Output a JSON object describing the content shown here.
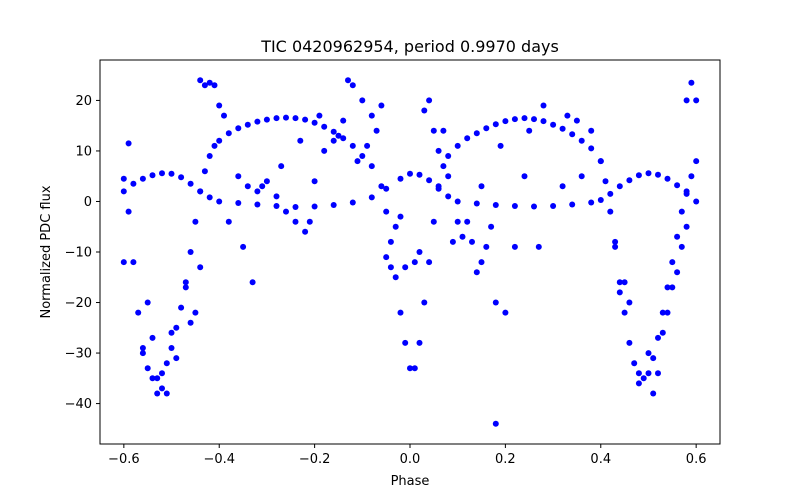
{
  "chart_data": {
    "type": "scatter",
    "title": "TIC 0420962954, period 0.9970 days",
    "xlabel": "Phase",
    "ylabel": "Normalized PDC flux",
    "xlim": [
      -0.65,
      0.65
    ],
    "ylim": [
      -48,
      28
    ],
    "xticks": [
      -0.6,
      -0.4,
      -0.2,
      0.0,
      0.2,
      0.4,
      0.6
    ],
    "xtick_labels": [
      "−0.6",
      "−0.4",
      "−0.2",
      "0.0",
      "0.2",
      "0.4",
      "0.6"
    ],
    "yticks": [
      20,
      10,
      0,
      -10,
      -20,
      -30,
      -40
    ],
    "ytick_labels": [
      "20",
      "10",
      "0",
      "−10",
      "−20",
      "−30",
      "−40"
    ],
    "grid": false,
    "legend": "none",
    "marker_color": "#0000ff",
    "series": [
      {
        "points": [
          [
            -0.6,
            4.5
          ],
          [
            -0.59,
            -2
          ],
          [
            -0.58,
            -12
          ],
          [
            -0.57,
            -22
          ],
          [
            -0.56,
            -29
          ],
          [
            -0.55,
            -33
          ],
          [
            -0.54,
            -35
          ],
          [
            -0.53,
            -35
          ],
          [
            -0.52,
            -34
          ],
          [
            -0.51,
            -32
          ],
          [
            -0.5,
            -29
          ],
          [
            -0.49,
            -25
          ],
          [
            -0.48,
            -21
          ],
          [
            -0.47,
            -16
          ],
          [
            -0.46,
            -10
          ],
          [
            -0.45,
            -4
          ],
          [
            -0.44,
            2
          ],
          [
            -0.43,
            6
          ],
          [
            -0.42,
            9
          ],
          [
            -0.41,
            11
          ],
          [
            -0.4,
            12
          ],
          [
            -0.38,
            13.5
          ],
          [
            -0.36,
            14.5
          ],
          [
            -0.34,
            15.2
          ],
          [
            -0.32,
            15.8
          ],
          [
            -0.3,
            16.2
          ],
          [
            -0.28,
            16.5
          ],
          [
            -0.26,
            16.6
          ],
          [
            -0.24,
            16.5
          ],
          [
            -0.22,
            16.2
          ],
          [
            -0.2,
            15.6
          ],
          [
            -0.18,
            14.8
          ],
          [
            -0.16,
            13.8
          ],
          [
            -0.14,
            12.5
          ],
          [
            -0.12,
            11
          ],
          [
            -0.1,
            9
          ],
          [
            -0.08,
            7
          ],
          [
            -0.06,
            3
          ],
          [
            -0.05,
            -2
          ],
          [
            -0.04,
            -8
          ],
          [
            -0.03,
            -15
          ],
          [
            -0.02,
            -22
          ],
          [
            -0.01,
            -28
          ],
          [
            0.0,
            -33
          ],
          [
            0.01,
            -33
          ],
          [
            0.02,
            -28
          ],
          [
            0.03,
            -20
          ],
          [
            0.04,
            -12
          ],
          [
            0.05,
            -4
          ],
          [
            0.06,
            3
          ],
          [
            0.07,
            7
          ],
          [
            0.08,
            9
          ],
          [
            0.1,
            11
          ],
          [
            0.12,
            12.5
          ],
          [
            0.14,
            13.5
          ],
          [
            0.16,
            14.5
          ],
          [
            0.18,
            15.3
          ],
          [
            0.2,
            15.9
          ],
          [
            0.22,
            16.3
          ],
          [
            0.24,
            16.5
          ],
          [
            0.26,
            16.3
          ],
          [
            0.28,
            15.9
          ],
          [
            0.3,
            15.2
          ],
          [
            0.32,
            14.4
          ],
          [
            0.34,
            13.3
          ],
          [
            0.36,
            12
          ],
          [
            0.38,
            10.5
          ],
          [
            0.4,
            8
          ],
          [
            0.41,
            4
          ],
          [
            0.42,
            -2
          ],
          [
            0.43,
            -9
          ],
          [
            0.44,
            -16
          ],
          [
            0.45,
            -22
          ],
          [
            0.46,
            -28
          ],
          [
            0.47,
            -32
          ],
          [
            0.48,
            -34
          ],
          [
            0.49,
            -35
          ],
          [
            0.5,
            -34
          ],
          [
            0.51,
            -31
          ],
          [
            0.52,
            -27
          ],
          [
            0.53,
            -22
          ],
          [
            0.54,
            -17
          ],
          [
            0.55,
            -12
          ],
          [
            0.56,
            -7
          ],
          [
            0.57,
            -2
          ],
          [
            0.58,
            2
          ],
          [
            0.59,
            5
          ],
          [
            0.6,
            8
          ]
        ]
      },
      {
        "points": [
          [
            -0.6,
            2
          ],
          [
            -0.58,
            3.5
          ],
          [
            -0.56,
            4.5
          ],
          [
            -0.54,
            5.2
          ],
          [
            -0.52,
            5.6
          ],
          [
            -0.5,
            5.5
          ],
          [
            -0.48,
            4.8
          ],
          [
            -0.46,
            3.5
          ],
          [
            -0.44,
            2
          ],
          [
            -0.42,
            0.8
          ],
          [
            -0.4,
            0
          ],
          [
            -0.36,
            -0.3
          ],
          [
            -0.32,
            -0.6
          ],
          [
            -0.28,
            -0.9
          ],
          [
            -0.24,
            -1.1
          ],
          [
            -0.2,
            -1.0
          ],
          [
            -0.16,
            -0.7
          ],
          [
            -0.12,
            -0.2
          ],
          [
            -0.08,
            0.8
          ],
          [
            -0.05,
            2.5
          ],
          [
            -0.02,
            4.5
          ],
          [
            0.0,
            5.5
          ],
          [
            0.02,
            5.3
          ],
          [
            0.04,
            4.2
          ],
          [
            0.06,
            2.5
          ],
          [
            0.08,
            1
          ],
          [
            0.1,
            0
          ],
          [
            0.14,
            -0.4
          ],
          [
            0.18,
            -0.7
          ],
          [
            0.22,
            -0.9
          ],
          [
            0.26,
            -1.0
          ],
          [
            0.3,
            -0.9
          ],
          [
            0.34,
            -0.6
          ],
          [
            0.38,
            -0.2
          ],
          [
            0.4,
            0.3
          ],
          [
            0.42,
            1.5
          ],
          [
            0.44,
            3
          ],
          [
            0.46,
            4.2
          ],
          [
            0.48,
            5.2
          ],
          [
            0.5,
            5.6
          ],
          [
            0.52,
            5.3
          ],
          [
            0.54,
            4.5
          ],
          [
            0.56,
            3.2
          ],
          [
            0.58,
            1.5
          ],
          [
            0.6,
            0
          ]
        ]
      },
      {
        "points": [
          [
            -0.6,
            -12
          ],
          [
            -0.59,
            11.5
          ],
          [
            -0.56,
            -30
          ],
          [
            -0.55,
            -20
          ],
          [
            -0.54,
            -27
          ],
          [
            -0.53,
            -38
          ],
          [
            -0.52,
            -37
          ],
          [
            -0.51,
            -38
          ],
          [
            -0.5,
            -26
          ],
          [
            -0.49,
            -31
          ],
          [
            -0.47,
            -17
          ],
          [
            -0.46,
            -24
          ],
          [
            -0.45,
            -22
          ],
          [
            -0.44,
            -13
          ],
          [
            -0.44,
            24
          ],
          [
            -0.43,
            23
          ],
          [
            -0.42,
            23.5
          ],
          [
            -0.41,
            23
          ],
          [
            -0.4,
            19
          ],
          [
            -0.39,
            17
          ],
          [
            -0.36,
            5
          ],
          [
            -0.34,
            3
          ],
          [
            -0.32,
            2
          ],
          [
            -0.3,
            4
          ],
          [
            -0.28,
            1
          ],
          [
            -0.26,
            -2
          ],
          [
            -0.24,
            -4
          ],
          [
            -0.22,
            -6
          ],
          [
            -0.21,
            -4
          ],
          [
            -0.2,
            4
          ],
          [
            -0.18,
            10
          ],
          [
            -0.16,
            12
          ],
          [
            -0.14,
            16
          ],
          [
            -0.13,
            24
          ],
          [
            -0.12,
            23
          ],
          [
            -0.1,
            20
          ],
          [
            -0.08,
            17
          ],
          [
            -0.07,
            14
          ],
          [
            -0.06,
            19
          ],
          [
            -0.05,
            -11
          ],
          [
            -0.04,
            -13
          ],
          [
            -0.03,
            -5
          ],
          [
            -0.02,
            -3
          ],
          [
            -0.01,
            -13
          ],
          [
            0.01,
            -12
          ],
          [
            0.02,
            -10
          ],
          [
            0.03,
            18
          ],
          [
            0.04,
            20
          ],
          [
            0.05,
            14
          ],
          [
            0.06,
            10
          ],
          [
            0.08,
            5
          ],
          [
            0.09,
            -8
          ],
          [
            0.11,
            -7
          ],
          [
            0.12,
            -4
          ],
          [
            0.13,
            -8
          ],
          [
            0.14,
            -14
          ],
          [
            0.15,
            -12
          ],
          [
            0.16,
            -9
          ],
          [
            0.17,
            -5
          ],
          [
            0.18,
            -20
          ],
          [
            0.18,
            -44
          ],
          [
            0.2,
            -22
          ],
          [
            0.22,
            -9
          ],
          [
            0.25,
            14
          ],
          [
            0.28,
            19
          ],
          [
            0.33,
            17
          ],
          [
            0.35,
            16
          ],
          [
            0.38,
            14
          ],
          [
            0.4,
            8
          ],
          [
            0.43,
            -8
          ],
          [
            0.44,
            -18
          ],
          [
            0.46,
            -20
          ],
          [
            0.48,
            -36
          ],
          [
            0.5,
            -30
          ],
          [
            0.51,
            -38
          ],
          [
            0.52,
            -34
          ],
          [
            0.53,
            -26
          ],
          [
            0.54,
            -22
          ],
          [
            0.55,
            -17
          ],
          [
            0.57,
            -9
          ],
          [
            0.58,
            -5
          ],
          [
            0.58,
            20
          ],
          [
            0.59,
            23.5
          ],
          [
            0.6,
            20
          ],
          [
            -0.38,
            -4
          ],
          [
            -0.35,
            -9
          ],
          [
            -0.33,
            -16
          ],
          [
            -0.31,
            3
          ],
          [
            -0.27,
            7
          ],
          [
            -0.23,
            12
          ],
          [
            -0.19,
            17
          ],
          [
            -0.15,
            13
          ],
          [
            -0.11,
            8
          ],
          [
            -0.09,
            11
          ],
          [
            0.07,
            14
          ],
          [
            0.1,
            -4
          ],
          [
            0.15,
            3
          ],
          [
            0.19,
            11
          ],
          [
            0.24,
            5
          ],
          [
            0.27,
            -9
          ],
          [
            0.32,
            3
          ],
          [
            0.36,
            5
          ],
          [
            0.45,
            -16
          ],
          [
            0.56,
            -14
          ]
        ]
      }
    ]
  }
}
